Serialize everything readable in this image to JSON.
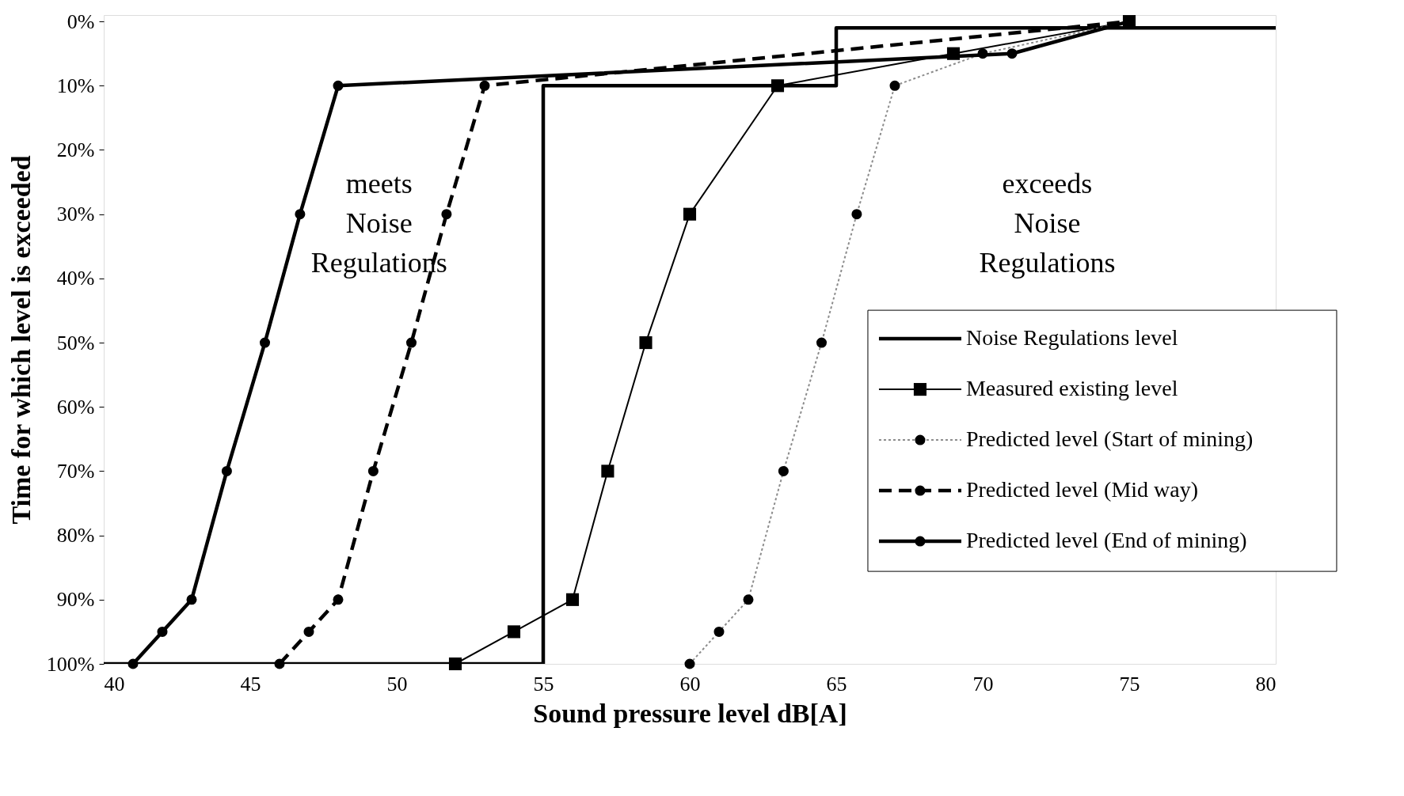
{
  "chart_data": {
    "type": "line",
    "xlabel": "Sound pressure level dB[A]",
    "ylabel": "Time for which level is exceeded",
    "xlim": [
      40,
      80
    ],
    "xticks": [
      40,
      45,
      50,
      55,
      60,
      65,
      70,
      75,
      80
    ],
    "ylim": [
      100,
      -1
    ],
    "yticks": [
      {
        "value": 0,
        "label": "0%"
      },
      {
        "value": 10,
        "label": "10%"
      },
      {
        "value": 20,
        "label": "20%"
      },
      {
        "value": 30,
        "label": "30%"
      },
      {
        "value": 40,
        "label": "40%"
      },
      {
        "value": 50,
        "label": "50%"
      },
      {
        "value": 60,
        "label": "60%"
      },
      {
        "value": 70,
        "label": "70%"
      },
      {
        "value": 80,
        "label": "80%"
      },
      {
        "value": 90,
        "label": "90%"
      },
      {
        "value": 100,
        "label": "100%"
      }
    ],
    "grid": false,
    "legend": "right",
    "annotations": [
      "meets\nNoise\nRegulations",
      "exceeds\nNoise\nRegulations"
    ],
    "series": [
      {
        "name": "Noise Regulations level",
        "color": "#000000",
        "line_style": "solid",
        "marker": "none",
        "x": [
          40,
          55,
          55,
          65,
          65,
          80
        ],
        "values": [
          100,
          100,
          10,
          10,
          1,
          1
        ]
      },
      {
        "name": "Measured existing level",
        "color": "#000000",
        "line_style": "solid",
        "marker": "square",
        "x": [
          52,
          54,
          56,
          57.2,
          58.5,
          60,
          63,
          69,
          75
        ],
        "values": [
          100,
          95,
          90,
          70,
          50,
          30,
          10,
          5,
          0
        ]
      },
      {
        "name": "Predicted level (Start of mining)",
        "color": "#8c8c8c",
        "line_style": "dotted",
        "marker": "circle",
        "x": [
          60,
          61,
          62,
          63.2,
          64.5,
          65.7,
          67,
          70,
          75
        ],
        "values": [
          100,
          95,
          90,
          70,
          50,
          30,
          10,
          5,
          0
        ]
      },
      {
        "name": "Predicted level (Mid way)",
        "color": "#000000",
        "line_style": "dashed",
        "marker": "circle",
        "x": [
          46,
          47,
          48,
          49.2,
          50.5,
          51.7,
          53,
          75
        ],
        "values": [
          100,
          95,
          90,
          70,
          50,
          30,
          10,
          0
        ]
      },
      {
        "name": "Predicted level (End of mining)",
        "color": "#000000",
        "line_style": "solid",
        "marker": "circle",
        "x": [
          41,
          42,
          43,
          44.2,
          45.5,
          46.7,
          48,
          71,
          75
        ],
        "values": [
          100,
          95,
          90,
          70,
          50,
          30,
          10,
          5,
          0
        ]
      }
    ]
  }
}
